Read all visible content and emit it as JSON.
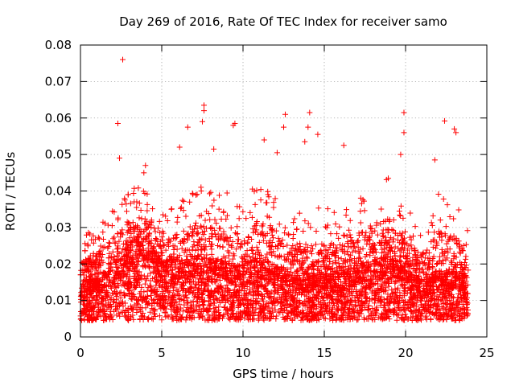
{
  "chart_data": {
    "type": "scatter",
    "title": "Day 269 of 2016, Rate Of TEC Index for receiver samo",
    "xlabel": "GPS time / hours",
    "ylabel": "ROTI / TECUs",
    "xlim": [
      0,
      25
    ],
    "ylim": [
      0,
      0.08
    ],
    "xticks": [
      0,
      5,
      10,
      15,
      20,
      25
    ],
    "xtick_labels": [
      "0",
      "5",
      "10",
      "15",
      "20",
      "25"
    ],
    "yticks": [
      0,
      0.01,
      0.02,
      0.03,
      0.04,
      0.05,
      0.06,
      0.07,
      0.08
    ],
    "ytick_labels": [
      "0",
      "0.01",
      "0.02",
      "0.03",
      "0.04",
      "0.05",
      "0.06",
      "0.07",
      "0.08"
    ],
    "grid": true,
    "marker": "+",
    "color": "#ff0000",
    "x_range_hours": [
      0,
      23.85
    ],
    "baseline_profile": {
      "hours": [
        0,
        1,
        2,
        3,
        4,
        5,
        6,
        7,
        8,
        9,
        10,
        11,
        12,
        13,
        14,
        15,
        16,
        17,
        18,
        19,
        20,
        21,
        22,
        23,
        23.85
      ],
      "typical": [
        0.011,
        0.012,
        0.014,
        0.018,
        0.02,
        0.015,
        0.014,
        0.016,
        0.015,
        0.015,
        0.013,
        0.016,
        0.014,
        0.012,
        0.012,
        0.013,
        0.013,
        0.014,
        0.015,
        0.016,
        0.013,
        0.012,
        0.013,
        0.013,
        0.012
      ],
      "upper_envelope": [
        0.028,
        0.03,
        0.036,
        0.04,
        0.044,
        0.034,
        0.038,
        0.042,
        0.04,
        0.042,
        0.036,
        0.044,
        0.04,
        0.034,
        0.036,
        0.036,
        0.034,
        0.038,
        0.04,
        0.044,
        0.036,
        0.03,
        0.04,
        0.038,
        0.03
      ]
    },
    "outliers": [
      {
        "x": 2.6,
        "y": 0.076
      },
      {
        "x": 2.3,
        "y": 0.0585
      },
      {
        "x": 7.6,
        "y": 0.0635
      },
      {
        "x": 7.6,
        "y": 0.062
      },
      {
        "x": 7.5,
        "y": 0.059
      },
      {
        "x": 9.4,
        "y": 0.058
      },
      {
        "x": 9.5,
        "y": 0.0585
      },
      {
        "x": 6.6,
        "y": 0.0575
      },
      {
        "x": 12.6,
        "y": 0.061
      },
      {
        "x": 12.5,
        "y": 0.0575
      },
      {
        "x": 14.1,
        "y": 0.0615
      },
      {
        "x": 14.0,
        "y": 0.0575
      },
      {
        "x": 14.6,
        "y": 0.0555
      },
      {
        "x": 19.9,
        "y": 0.0615
      },
      {
        "x": 19.9,
        "y": 0.056
      },
      {
        "x": 22.4,
        "y": 0.0592
      },
      {
        "x": 23.0,
        "y": 0.057
      },
      {
        "x": 23.1,
        "y": 0.056
      },
      {
        "x": 6.1,
        "y": 0.052
      },
      {
        "x": 8.2,
        "y": 0.0515
      },
      {
        "x": 11.3,
        "y": 0.054
      },
      {
        "x": 12.1,
        "y": 0.0505
      },
      {
        "x": 13.8,
        "y": 0.0535
      },
      {
        "x": 16.2,
        "y": 0.0525
      },
      {
        "x": 19.7,
        "y": 0.05
      },
      {
        "x": 21.8,
        "y": 0.0485
      },
      {
        "x": 2.4,
        "y": 0.049
      },
      {
        "x": 4.0,
        "y": 0.047
      },
      {
        "x": 3.9,
        "y": 0.045
      }
    ]
  }
}
